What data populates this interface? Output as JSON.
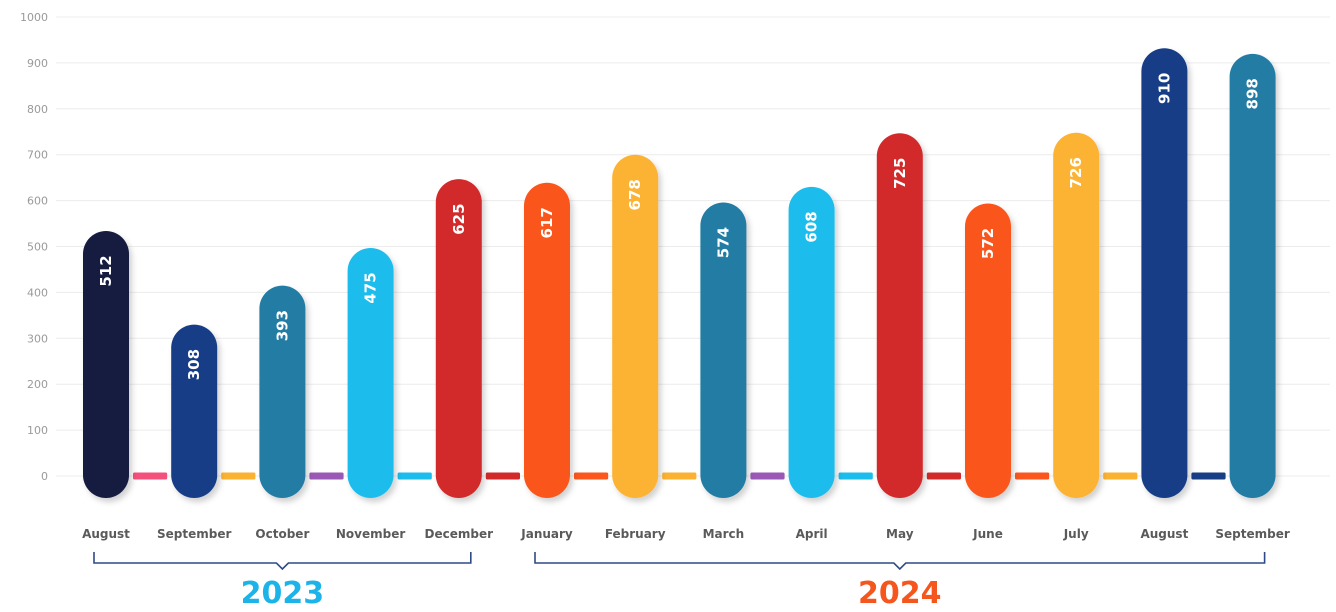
{
  "chart_data": {
    "type": "bar",
    "categories": [
      "August",
      "September",
      "October",
      "November",
      "December",
      "January",
      "February",
      "March",
      "April",
      "May",
      "June",
      "July",
      "August",
      "September"
    ],
    "values": [
      512,
      308,
      393,
      475,
      625,
      617,
      678,
      574,
      608,
      725,
      572,
      726,
      910,
      898
    ],
    "bar_colors": [
      "#141a40",
      "#183e86",
      "#207ca4",
      "#1cbdec",
      "#d22a2a",
      "#fa561e",
      "#fcb231",
      "#207ca4",
      "#1cbdec",
      "#d22a2a",
      "#fa561e",
      "#fcb231",
      "#183e86",
      "#207ca4"
    ],
    "connector_colors": [
      "#f4507c",
      "#fcb231",
      "#9b59b6",
      "#1cbdec",
      "#d22a2a",
      "#fa561e",
      "#fcb231",
      "#9b59b6",
      "#1cbdec",
      "#d22a2a",
      "#fa561e",
      "#fcb231",
      "#183e86"
    ],
    "yticks": [
      "0",
      "100",
      "200",
      "300",
      "400",
      "500",
      "600",
      "700",
      "800",
      "900",
      "1000"
    ],
    "ylim": [
      0,
      1000
    ],
    "grid": true,
    "groups": [
      {
        "label": "2023",
        "color": "#1cb4e8",
        "from_index": 0,
        "to_index": 4
      },
      {
        "label": "2024",
        "color": "#f4561e",
        "from_index": 5,
        "to_index": 13
      }
    ]
  }
}
